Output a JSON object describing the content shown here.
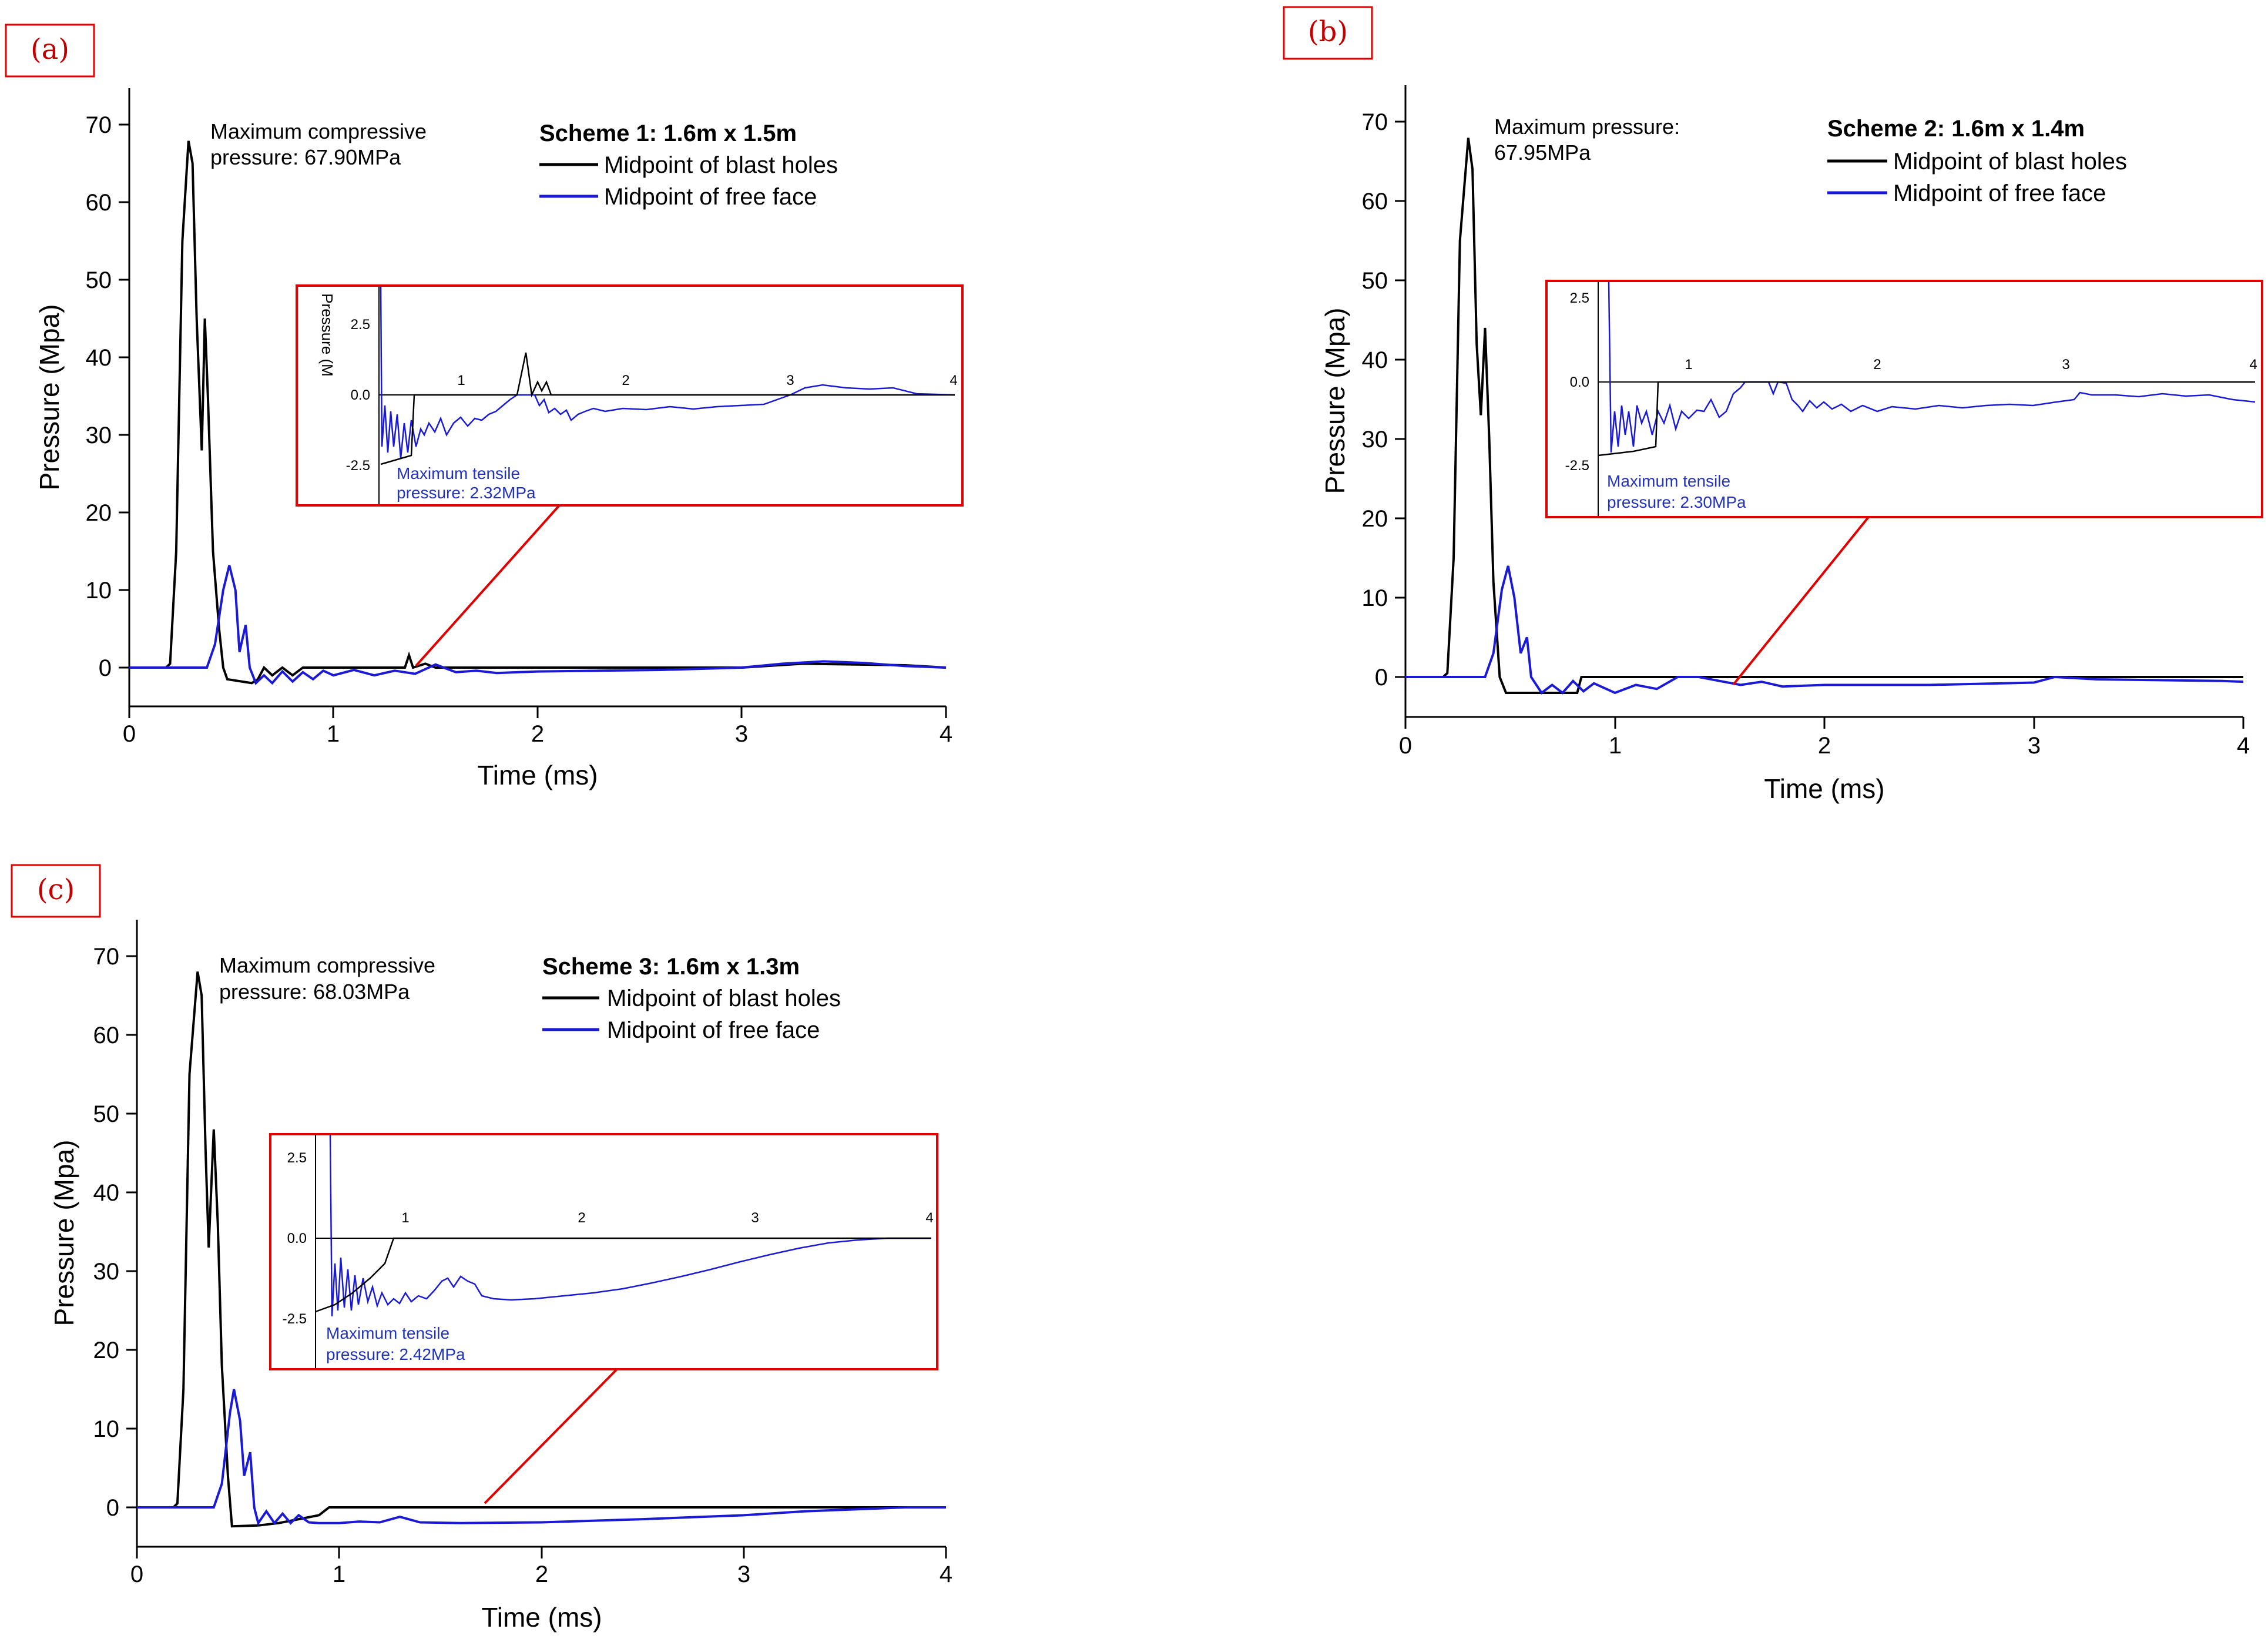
{
  "colors": {
    "blast": "#000000",
    "free": "#1a1ad6",
    "accent": "#e00000"
  },
  "chart_data": [
    {
      "panel": "(a)",
      "type": "line",
      "xlabel": "Time (ms)",
      "ylabel": "Pressure (Mpa)",
      "xlim": [
        0,
        4
      ],
      "ylim": [
        -5,
        75
      ],
      "xticks": [
        "0",
        "1",
        "2",
        "3",
        "4"
      ],
      "yticks": [
        "0",
        "10",
        "20",
        "30",
        "40",
        "50",
        "60",
        "70"
      ],
      "legend_title": "Scheme 1: 1.6m x 1.5m",
      "annotation": [
        "Maximum compressive",
        "pressure: 67.90MPa"
      ],
      "series": [
        {
          "name": "Midpoint of blast holes",
          "color": "#000000",
          "points": [
            [
              0,
              0
            ],
            [
              0.18,
              0
            ],
            [
              0.2,
              0.5
            ],
            [
              0.23,
              15
            ],
            [
              0.26,
              55
            ],
            [
              0.29,
              67.9
            ],
            [
              0.31,
              65
            ],
            [
              0.33,
              45
            ],
            [
              0.355,
              28
            ],
            [
              0.37,
              45
            ],
            [
              0.385,
              35
            ],
            [
              0.41,
              15
            ],
            [
              0.44,
              5
            ],
            [
              0.46,
              0
            ],
            [
              0.48,
              -1.5
            ],
            [
              0.6,
              -2
            ],
            [
              0.63,
              -1.5
            ],
            [
              0.66,
              0
            ],
            [
              0.7,
              -1
            ],
            [
              0.75,
              0
            ],
            [
              0.8,
              -1
            ],
            [
              0.85,
              0
            ],
            [
              1.0,
              0
            ],
            [
              1.1,
              0
            ],
            [
              1.35,
              0
            ],
            [
              1.37,
              1.6
            ],
            [
              1.39,
              0
            ],
            [
              1.45,
              0.5
            ],
            [
              1.5,
              0
            ],
            [
              2,
              0
            ],
            [
              3,
              0
            ],
            [
              3.3,
              0.5
            ],
            [
              3.8,
              0.3
            ],
            [
              4,
              0
            ]
          ]
        },
        {
          "name": "Midpoint of free face",
          "color": "#1a1ad6",
          "points": [
            [
              0,
              0
            ],
            [
              0.38,
              0
            ],
            [
              0.42,
              3
            ],
            [
              0.46,
              10
            ],
            [
              0.49,
              13.2
            ],
            [
              0.52,
              10
            ],
            [
              0.54,
              2
            ],
            [
              0.57,
              5.5
            ],
            [
              0.59,
              0
            ],
            [
              0.62,
              -2
            ],
            [
              0.66,
              -1
            ],
            [
              0.7,
              -2
            ],
            [
              0.75,
              -0.5
            ],
            [
              0.8,
              -1.8
            ],
            [
              0.85,
              -0.6
            ],
            [
              0.9,
              -1.5
            ],
            [
              0.95,
              -0.4
            ],
            [
              1.0,
              -1
            ],
            [
              1.1,
              -0.3
            ],
            [
              1.2,
              -1
            ],
            [
              1.3,
              -0.4
            ],
            [
              1.4,
              -0.8
            ],
            [
              1.5,
              0.4
            ],
            [
              1.6,
              -0.6
            ],
            [
              1.7,
              -0.4
            ],
            [
              1.8,
              -0.7
            ],
            [
              2.0,
              -0.5
            ],
            [
              2.3,
              -0.4
            ],
            [
              2.6,
              -0.3
            ],
            [
              3.0,
              0
            ],
            [
              3.2,
              0.5
            ],
            [
              3.4,
              0.8
            ],
            [
              3.6,
              0.6
            ],
            [
              3.8,
              0.2
            ],
            [
              4,
              0
            ]
          ]
        }
      ],
      "inset": {
        "xticks": [
          "1",
          "2",
          "3",
          "4"
        ],
        "yticks": [
          "2.5",
          "0.0",
          "-2.5"
        ],
        "ylabel": "Pressure (M",
        "annotation": [
          "Maximum tensile",
          "pressure: 2.32MPa"
        ]
      }
    },
    {
      "panel": "(b)",
      "type": "line",
      "xlabel": "Time (ms)",
      "ylabel": "Pressure (Mpa)",
      "xlim": [
        0,
        4
      ],
      "ylim": [
        -5,
        75
      ],
      "xticks": [
        "0",
        "1",
        "2",
        "3",
        "4"
      ],
      "yticks": [
        "0",
        "10",
        "20",
        "30",
        "40",
        "50",
        "60",
        "70"
      ],
      "legend_title": "Scheme 2: 1.6m x 1.4m",
      "annotation": [
        "Maximum pressure:",
        "67.95MPa"
      ],
      "series": [
        {
          "name": "Midpoint of blast holes",
          "color": "#000000",
          "points": [
            [
              0,
              0
            ],
            [
              0.18,
              0
            ],
            [
              0.2,
              0.5
            ],
            [
              0.23,
              15
            ],
            [
              0.26,
              55
            ],
            [
              0.3,
              67.95
            ],
            [
              0.32,
              64
            ],
            [
              0.34,
              42
            ],
            [
              0.36,
              33
            ],
            [
              0.38,
              44
            ],
            [
              0.4,
              30
            ],
            [
              0.42,
              12
            ],
            [
              0.45,
              0
            ],
            [
              0.48,
              -2
            ],
            [
              0.82,
              -2
            ],
            [
              0.84,
              0
            ],
            [
              1.0,
              0
            ],
            [
              4,
              0
            ]
          ]
        },
        {
          "name": "Midpoint of free face",
          "color": "#1a1ad6",
          "points": [
            [
              0,
              0
            ],
            [
              0.38,
              0
            ],
            [
              0.42,
              3
            ],
            [
              0.46,
              11
            ],
            [
              0.49,
              14
            ],
            [
              0.52,
              10
            ],
            [
              0.55,
              3
            ],
            [
              0.58,
              5
            ],
            [
              0.6,
              0
            ],
            [
              0.65,
              -2
            ],
            [
              0.7,
              -1
            ],
            [
              0.75,
              -2
            ],
            [
              0.8,
              -0.5
            ],
            [
              0.85,
              -1.8
            ],
            [
              0.9,
              -0.8
            ],
            [
              1.0,
              -2
            ],
            [
              1.1,
              -1
            ],
            [
              1.2,
              -1.5
            ],
            [
              1.3,
              0
            ],
            [
              1.4,
              0
            ],
            [
              1.5,
              -0.5
            ],
            [
              1.6,
              -1
            ],
            [
              1.7,
              -0.6
            ],
            [
              1.8,
              -1.2
            ],
            [
              2.0,
              -1
            ],
            [
              2.5,
              -1
            ],
            [
              3.0,
              -0.7
            ],
            [
              3.1,
              0
            ],
            [
              3.3,
              -0.3
            ],
            [
              3.6,
              -0.4
            ],
            [
              3.9,
              -0.5
            ],
            [
              4,
              -0.6
            ]
          ]
        }
      ],
      "inset": {
        "xticks": [
          "1",
          "2",
          "3",
          "4"
        ],
        "yticks": [
          "2.5",
          "0.0",
          "-2.5"
        ],
        "annotation": [
          "Maximum tensile",
          "pressure: 2.30MPa"
        ]
      }
    },
    {
      "panel": "(c)",
      "type": "line",
      "xlabel": "Time (ms)",
      "ylabel": "Pressure (Mpa)",
      "xlim": [
        0,
        4
      ],
      "ylim": [
        -5,
        75
      ],
      "xticks": [
        "0",
        "1",
        "2",
        "3",
        "4"
      ],
      "yticks": [
        "0",
        "10",
        "20",
        "30",
        "40",
        "50",
        "60",
        "70"
      ],
      "legend_title": "Scheme 3: 1.6m x 1.3m",
      "annotation": [
        "Maximum compressive",
        "pressure: 68.03MPa"
      ],
      "series": [
        {
          "name": "Midpoint of blast holes",
          "color": "#000000",
          "points": [
            [
              0,
              0
            ],
            [
              0.18,
              0
            ],
            [
              0.2,
              0.5
            ],
            [
              0.23,
              15
            ],
            [
              0.26,
              55
            ],
            [
              0.3,
              68.03
            ],
            [
              0.32,
              65
            ],
            [
              0.34,
              45
            ],
            [
              0.355,
              33
            ],
            [
              0.38,
              48
            ],
            [
              0.4,
              36
            ],
            [
              0.42,
              18
            ],
            [
              0.45,
              4
            ],
            [
              0.47,
              -2.4
            ],
            [
              0.6,
              -2.3
            ],
            [
              0.7,
              -2
            ],
            [
              0.8,
              -1.5
            ],
            [
              0.9,
              -1
            ],
            [
              0.95,
              0
            ],
            [
              1.0,
              0
            ],
            [
              4,
              0
            ]
          ]
        },
        {
          "name": "Midpoint of free face",
          "color": "#1a1ad6",
          "points": [
            [
              0,
              0
            ],
            [
              0.38,
              0
            ],
            [
              0.42,
              3
            ],
            [
              0.46,
              12
            ],
            [
              0.48,
              15
            ],
            [
              0.51,
              11
            ],
            [
              0.53,
              4
            ],
            [
              0.56,
              7
            ],
            [
              0.58,
              0
            ],
            [
              0.6,
              -2
            ],
            [
              0.64,
              -0.5
            ],
            [
              0.68,
              -2
            ],
            [
              0.72,
              -0.8
            ],
            [
              0.76,
              -2
            ],
            [
              0.8,
              -1
            ],
            [
              0.85,
              -1.9
            ],
            [
              0.9,
              -2
            ],
            [
              1.0,
              -2
            ],
            [
              1.1,
              -1.8
            ],
            [
              1.2,
              -1.9
            ],
            [
              1.3,
              -1.2
            ],
            [
              1.4,
              -1.9
            ],
            [
              1.6,
              -2
            ],
            [
              2.0,
              -1.9
            ],
            [
              2.5,
              -1.5
            ],
            [
              3.0,
              -1
            ],
            [
              3.3,
              -0.5
            ],
            [
              3.6,
              -0.2
            ],
            [
              3.8,
              0
            ],
            [
              4,
              0
            ]
          ]
        }
      ],
      "inset": {
        "xticks": [
          "1",
          "2",
          "3",
          "4"
        ],
        "yticks": [
          "2.5",
          "0.0",
          "-2.5"
        ],
        "annotation": [
          "Maximum tensile",
          "pressure: 2.42MPa"
        ]
      }
    }
  ]
}
